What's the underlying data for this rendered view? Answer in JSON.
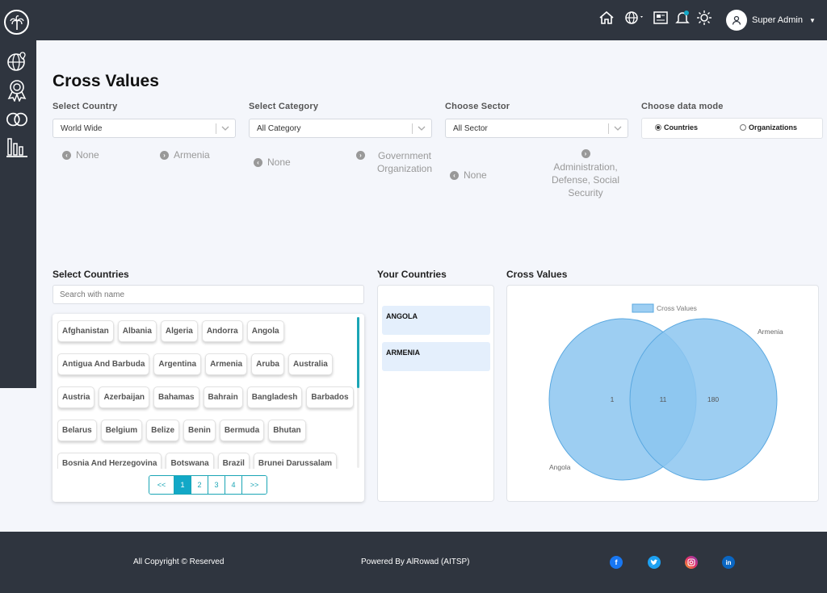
{
  "header": {
    "user_name": "Super Admin",
    "icons": [
      "home-icon",
      "globe-icon",
      "gallery-icon",
      "bell-icon",
      "sun-icon",
      "user-avatar-icon"
    ]
  },
  "sidebar": {
    "icons": [
      "palm-logo-icon",
      "globe-location-icon",
      "award-icon",
      "overlap-circles-icon",
      "bar-chart-icon"
    ]
  },
  "page": {
    "title": "Cross Values"
  },
  "filters": {
    "country": {
      "label": "Select Country",
      "value": "World Wide",
      "options": [
        "None",
        "Armenia"
      ]
    },
    "category": {
      "label": "Select Category",
      "value": "All Category",
      "options": [
        "None",
        "Government Organization"
      ]
    },
    "sector": {
      "label": "Choose Sector",
      "value": "All Sector",
      "options": [
        "None",
        "Administration, Defense, Social Security"
      ]
    },
    "data_mode": {
      "label": "Choose data mode",
      "options": [
        "Countries",
        "Organizations"
      ],
      "selected": "Countries"
    }
  },
  "select_countries": {
    "title": "Select Countries",
    "search_placeholder": "Search with name",
    "rows": [
      [
        "Afghanistan",
        "Albania",
        "Algeria",
        "Andorra",
        "Angola"
      ],
      [
        "Antigua And Barbuda",
        "Argentina",
        "Armenia",
        "Aruba",
        "Australia"
      ],
      [
        "Austria",
        "Azerbaijan",
        "Bahamas",
        "Bahrain",
        "Bangladesh",
        "Barbados"
      ],
      [
        "Belarus",
        "Belgium",
        "Belize",
        "Benin",
        "Bermuda",
        "Bhutan"
      ],
      [
        "Bosnia And Herzegovina",
        "Botswana",
        "Brazil",
        "Brunei Darussalam"
      ]
    ],
    "pagination": [
      "<<",
      "1",
      "2",
      "3",
      "4",
      ">>"
    ],
    "active_page": "1"
  },
  "your_countries": {
    "title": "Your Countries",
    "items": [
      "ANGOLA",
      "ARMENIA"
    ]
  },
  "cross_values": {
    "title": "Cross Values",
    "colors": {
      "fill": "#8cc6f0",
      "stroke": "#5aa8e0"
    }
  },
  "chart_data": {
    "type": "venn",
    "legend": "Cross Values",
    "sets": [
      {
        "name": "Angola",
        "only": 1
      },
      {
        "name": "Armenia",
        "only": 180
      }
    ],
    "intersection": 11
  },
  "footer": {
    "copyright": "All Copyright © Reserved",
    "powered": "Powered By AlRowad (AITSP)",
    "social": [
      "facebook-icon",
      "twitter-icon",
      "instagram-icon",
      "linkedin-icon"
    ]
  },
  "colors": {
    "dark": "#2f353f",
    "accent": "#12a8c7",
    "highlight": "#e4effc"
  }
}
